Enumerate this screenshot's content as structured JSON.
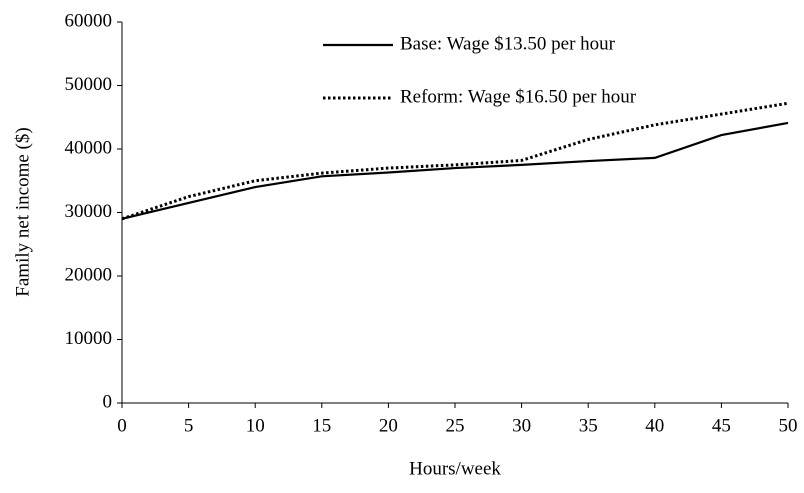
{
  "chart_data": {
    "type": "line",
    "x": [
      0,
      5,
      10,
      15,
      20,
      25,
      30,
      35,
      40,
      45,
      50
    ],
    "series": [
      {
        "name": "Base: Wage $13.50 per hour",
        "color": "#000000",
        "style": "solid",
        "values": [
          29000,
          31500,
          34000,
          35700,
          36300,
          37000,
          37500,
          38100,
          38600,
          42200,
          44100
        ]
      },
      {
        "name": "Reform: Wage $16.50 per hour",
        "color": "#000000",
        "style": "dotted",
        "values": [
          29000,
          32500,
          35000,
          36200,
          37000,
          37500,
          38200,
          41500,
          43800,
          45500,
          47200
        ]
      }
    ],
    "xlabel": "Hours/week",
    "ylabel": "Family net income ($)",
    "xlim": [
      0,
      50
    ],
    "xticks": [
      0,
      5,
      10,
      15,
      20,
      25,
      30,
      35,
      40,
      45,
      50
    ],
    "ylim": [
      0,
      60000
    ],
    "yticks": [
      0,
      10000,
      20000,
      30000,
      40000,
      50000,
      60000
    ],
    "grid": false,
    "legend": "top"
  }
}
